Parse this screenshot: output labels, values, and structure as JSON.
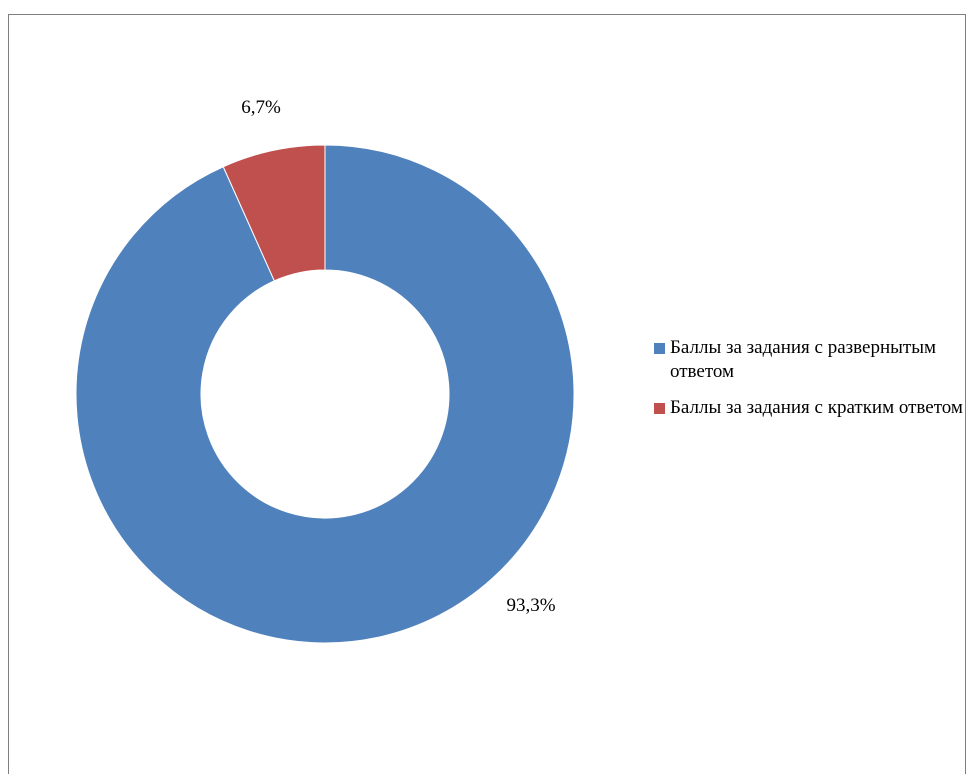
{
  "chart_data": {
    "type": "pie",
    "variant": "doughnut",
    "series": [
      {
        "name": "Баллы за задания с развернытым ответом",
        "value": 93.3,
        "label": "93,3%",
        "color": "#4f81bd"
      },
      {
        "name": "Баллы за задания с кратким ответом",
        "value": 6.7,
        "label": "6,7%",
        "color": "#c0504d"
      }
    ],
    "legend_position": "right"
  },
  "legend": {
    "items": [
      {
        "label": "Баллы за задания с развернытым ответом"
      },
      {
        "label": "Баллы за задания с кратким ответом"
      }
    ]
  }
}
